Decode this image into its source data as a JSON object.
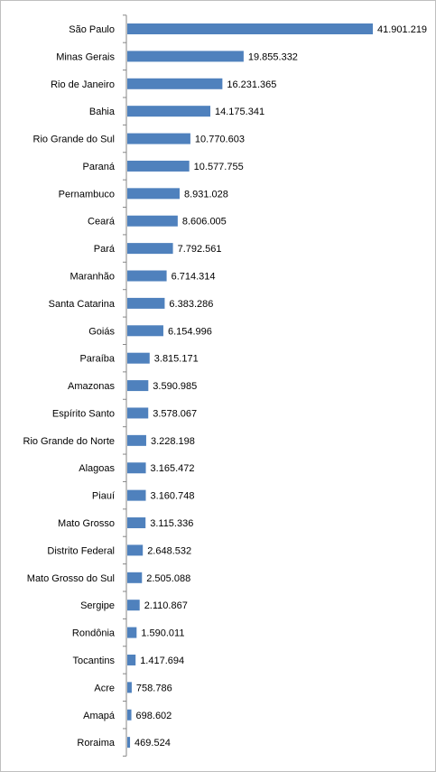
{
  "chart_data": {
    "type": "bar",
    "orientation": "horizontal",
    "title": "",
    "xlabel": "",
    "ylabel": "",
    "grid": false,
    "legend": "none",
    "bar_color": "#4f81bd",
    "axis_color": "#868686",
    "categories": [
      "São Paulo",
      "Minas Gerais",
      "Rio de Janeiro",
      "Bahia",
      "Rio Grande do Sul",
      "Paraná",
      "Pernambuco",
      "Ceará",
      "Pará",
      "Maranhão",
      "Santa Catarina",
      "Goiás",
      "Paraíba",
      "Amazonas",
      "Espírito Santo",
      "Rio Grande do Norte",
      "Alagoas",
      "Piauí",
      "Mato Grosso",
      "Distrito Federal",
      "Mato Grosso do Sul",
      "Sergipe",
      "Rondônia",
      "Tocantins",
      "Acre",
      "Amapá",
      "Roraima"
    ],
    "values": [
      41901219,
      19855332,
      16231365,
      14175341,
      10770603,
      10577755,
      8931028,
      8606005,
      7792561,
      6714314,
      6383286,
      6154996,
      3815171,
      3590985,
      3578067,
      3228198,
      3165472,
      3160748,
      3115336,
      2648532,
      2505088,
      2110867,
      1590011,
      1417694,
      758786,
      698602,
      469524
    ],
    "value_labels": [
      "41.901.219",
      "19.855.332",
      "16.231.365",
      "14.175.341",
      "10.770.603",
      "10.577.755",
      "8.931.028",
      "8.606.005",
      "7.792.561",
      "6.714.314",
      "6.383.286",
      "6.154.996",
      "3.815.171",
      "3.590.985",
      "3.578.067",
      "3.228.198",
      "3.165.472",
      "3.160.748",
      "3.115.336",
      "2.648.532",
      "2.505.088",
      "2.110.867",
      "1.590.011",
      "1.417.694",
      "758.786",
      "698.602",
      "469.524"
    ],
    "xlim": [
      0,
      41901219
    ]
  }
}
